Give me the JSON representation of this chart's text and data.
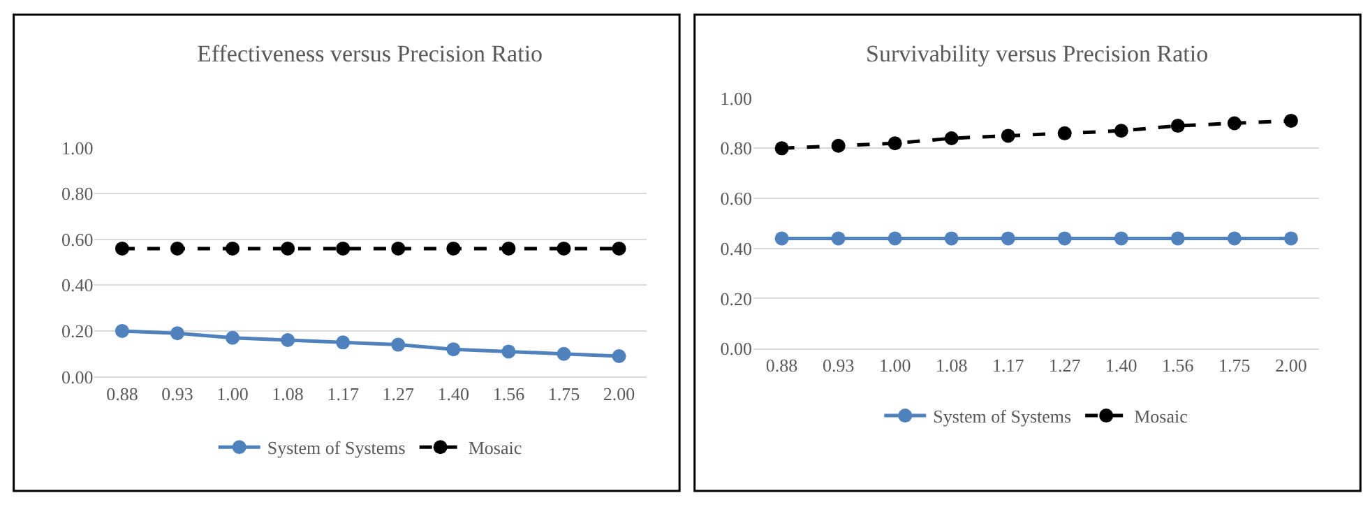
{
  "chart_data": [
    {
      "type": "line",
      "title": "Effectiveness versus Precision Ratio",
      "categories": [
        "0.88",
        "0.93",
        "1.00",
        "1.08",
        "1.17",
        "1.27",
        "1.40",
        "1.56",
        "1.75",
        "2.00"
      ],
      "series": [
        {
          "name": "System of Systems",
          "color": "#4f81bd",
          "line_style": "solid",
          "values": [
            0.2,
            0.19,
            0.17,
            0.16,
            0.15,
            0.14,
            0.12,
            0.11,
            0.1,
            0.09
          ]
        },
        {
          "name": "Mosaic",
          "color": "#000000",
          "line_style": "dashed",
          "values": [
            0.56,
            0.56,
            0.56,
            0.56,
            0.56,
            0.56,
            0.56,
            0.56,
            0.56,
            0.56
          ]
        }
      ],
      "marker": "circle",
      "ylim": [
        0,
        1.0
      ],
      "yticks": [
        {
          "value": 0,
          "label": "0.00"
        },
        {
          "value": 0.2,
          "label": "0.20"
        },
        {
          "value": 0.4,
          "label": "0.40"
        },
        {
          "value": 0.6,
          "label": "0.60"
        },
        {
          "value": 0.8,
          "label": "0.80"
        },
        {
          "value": 1.0,
          "label": "1.00"
        }
      ],
      "grid": "y",
      "legend": "bottom"
    },
    {
      "type": "line",
      "title": "Survivability versus Precision Ratio",
      "categories": [
        "0.88",
        "0.93",
        "1.00",
        "1.08",
        "1.17",
        "1.27",
        "1.40",
        "1.56",
        "1.75",
        "2.00"
      ],
      "series": [
        {
          "name": "System of Systems",
          "color": "#4f81bd",
          "line_style": "solid",
          "values": [
            0.44,
            0.44,
            0.44,
            0.44,
            0.44,
            0.44,
            0.44,
            0.44,
            0.44,
            0.44
          ]
        },
        {
          "name": "Mosaic",
          "color": "#000000",
          "line_style": "dashed",
          "values": [
            0.8,
            0.81,
            0.82,
            0.84,
            0.85,
            0.86,
            0.87,
            0.89,
            0.9,
            0.91
          ]
        }
      ],
      "marker": "circle",
      "ylim": [
        0,
        1.0
      ],
      "yticks": [
        {
          "value": 0,
          "label": "0.00"
        },
        {
          "value": 0.2,
          "label": "0.20"
        },
        {
          "value": 0.4,
          "label": "0.40"
        },
        {
          "value": 0.6,
          "label": "0.60"
        },
        {
          "value": 0.8,
          "label": "0.80"
        },
        {
          "value": 1.0,
          "label": "1.00"
        }
      ],
      "grid": "y",
      "legend": "bottom"
    }
  ]
}
